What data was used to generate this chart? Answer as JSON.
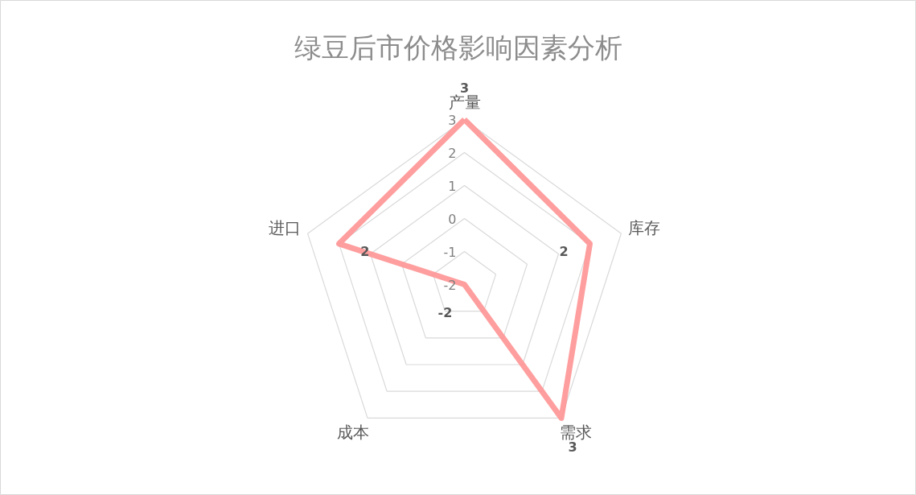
{
  "chart_data": {
    "type": "radar",
    "title": "绿豆后市价格影响因素分析",
    "categories": [
      "产量",
      "库存",
      "需求",
      "成本",
      "进口"
    ],
    "series": [
      {
        "color": "#ff9393",
        "values": [
          3,
          2,
          3,
          -2,
          2
        ]
      }
    ],
    "ylim": [
      -2,
      3
    ],
    "yticks": [
      -2,
      -1,
      0,
      1,
      2,
      3
    ],
    "data_labels": true,
    "grid": true,
    "marker": "none"
  }
}
